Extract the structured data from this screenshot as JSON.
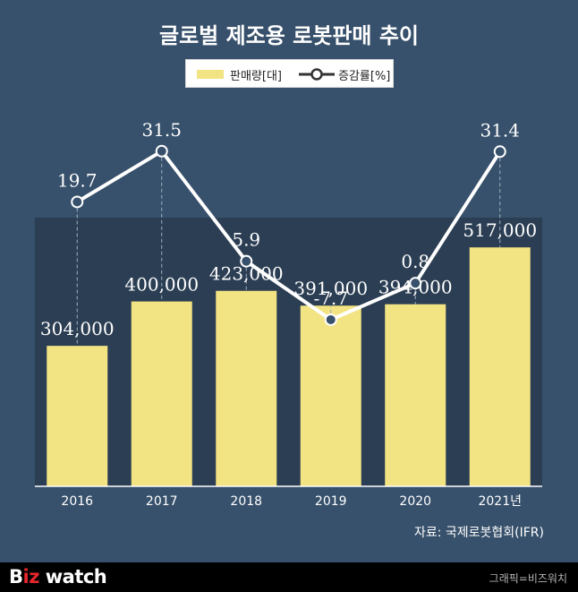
{
  "title": "글로벌 제조용 로봇판매 추이",
  "legend": {
    "bar_label": "판매량[대]",
    "line_label": "증감률[%]"
  },
  "source": "자료: 국제로봇협회(IFR)",
  "footer": {
    "brand_part1": "B",
    "brand_part2": "iz",
    "brand_part3": " watch",
    "credit": "그래픽=비즈워치"
  },
  "colors": {
    "background": "#37506b",
    "plot_panel": "#2b3e53",
    "bar": "#f2e383",
    "line": "#ffffff",
    "accent": "#e7262d"
  },
  "chart_data": {
    "type": "bar",
    "categories": [
      "2016",
      "2017",
      "2018",
      "2019",
      "2020",
      "2021년"
    ],
    "series": [
      {
        "name": "판매량[대]",
        "type": "bar",
        "values": [
          304000,
          400000,
          423000,
          391000,
          394000,
          517000
        ],
        "labels": [
          "304,000",
          "400,000",
          "423,000",
          "391,000",
          "394,000",
          "517,000"
        ]
      },
      {
        "name": "증감률[%]",
        "type": "line",
        "values": [
          19.7,
          31.5,
          5.9,
          -7.7,
          0.8,
          31.4
        ],
        "labels": [
          "19.7",
          "31.5",
          "5.9",
          "-7.7",
          "0.8",
          "31.4"
        ]
      }
    ],
    "bar_ylim": [
      0,
      620000
    ],
    "line_ylim": [
      -15,
      45
    ],
    "grid": false,
    "legend_position": "top-center"
  }
}
